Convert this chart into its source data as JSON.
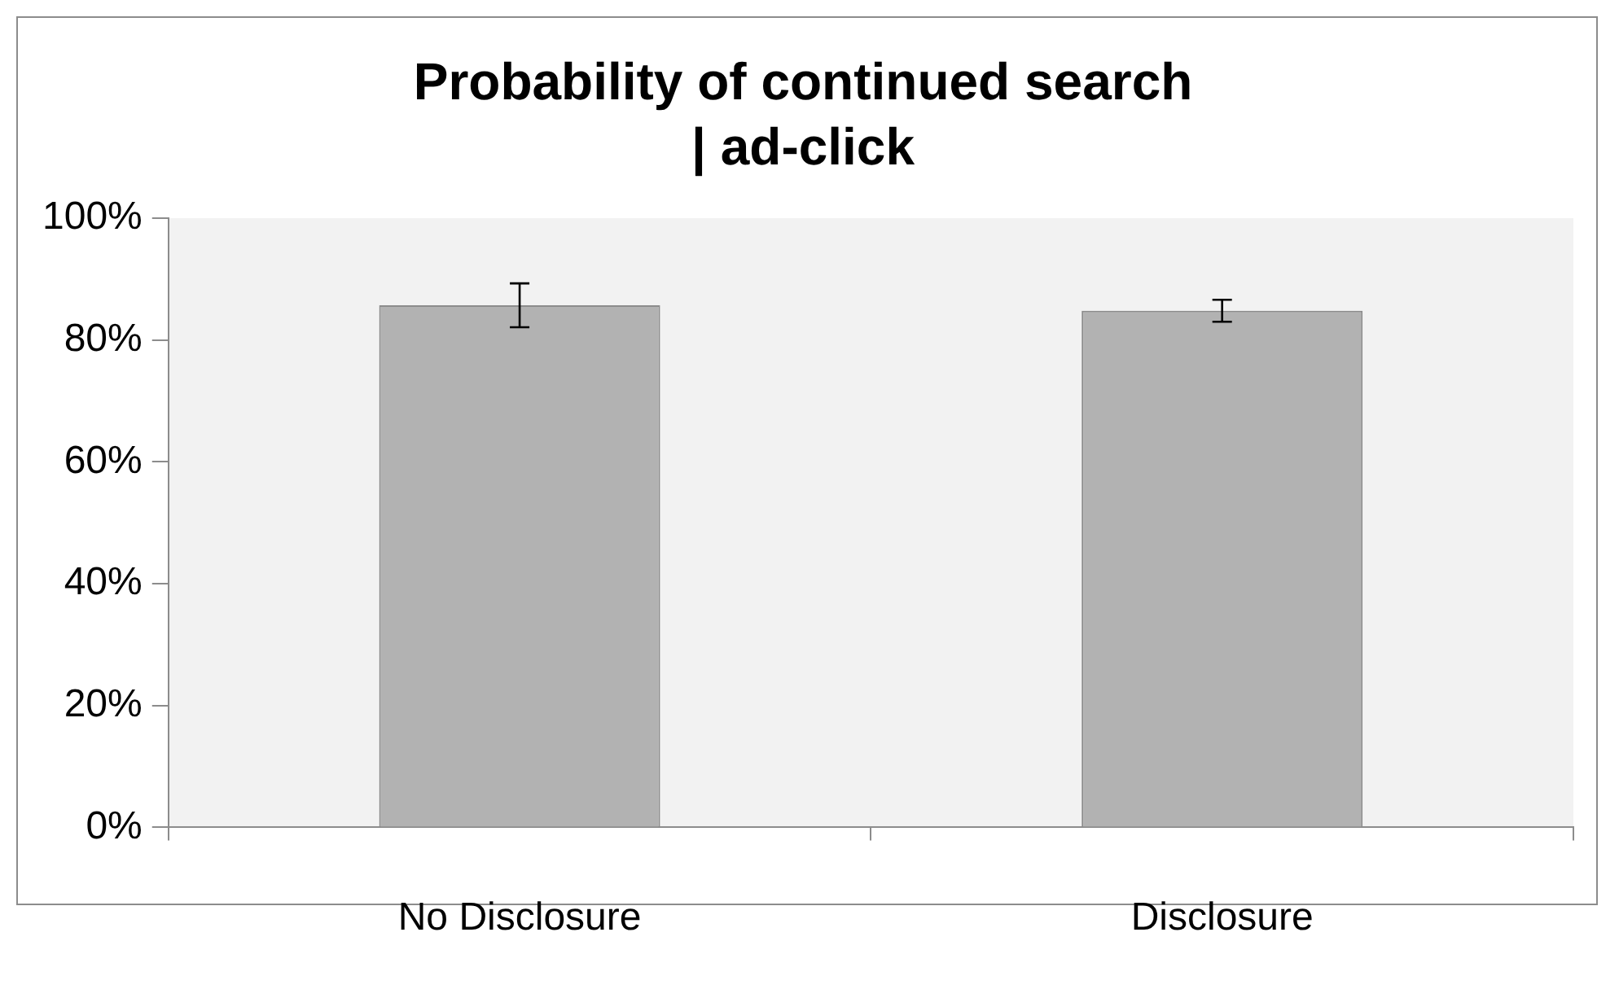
{
  "chart_data": {
    "type": "bar",
    "title": "Probability of continued search\n| ad-click",
    "categories": [
      "No Disclosure",
      "Disclosure"
    ],
    "values": [
      85.7,
      84.8
    ],
    "errors": [
      3.6,
      1.8
    ],
    "color": "#b2b2b2",
    "ylim": [
      0,
      100
    ],
    "yticks": [
      {
        "value": 0,
        "label": "0%"
      },
      {
        "value": 20,
        "label": "20%"
      },
      {
        "value": 40,
        "label": "40%"
      },
      {
        "value": 60,
        "label": "60%"
      },
      {
        "value": 80,
        "label": "80%"
      },
      {
        "value": 100,
        "label": "100%"
      }
    ],
    "grid": false,
    "legend": false
  }
}
